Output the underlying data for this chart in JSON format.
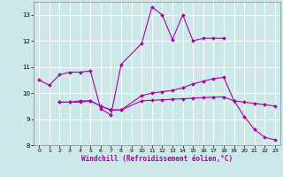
{
  "xlabel": "Windchill (Refroidissement éolien,°C)",
  "xlim": [
    -0.5,
    23.5
  ],
  "ylim": [
    8,
    13.5
  ],
  "yticks": [
    8,
    9,
    10,
    11,
    12,
    13
  ],
  "ytick_labels": [
    "8",
    "9",
    "10",
    "11",
    "12",
    "13"
  ],
  "xticks": [
    0,
    1,
    2,
    3,
    4,
    5,
    6,
    7,
    8,
    9,
    10,
    11,
    12,
    13,
    14,
    15,
    16,
    17,
    18,
    19,
    20,
    21,
    22,
    23
  ],
  "bg_color": "#cce8e8",
  "line_color": "#aa00aa",
  "grid_color": "#ffffff",
  "lines": [
    {
      "x": [
        0,
        1,
        2,
        3,
        4,
        5,
        6,
        7,
        8,
        10,
        11,
        12,
        13,
        14,
        15,
        16,
        17,
        18
      ],
      "y": [
        10.5,
        10.3,
        10.7,
        10.8,
        10.8,
        10.85,
        9.4,
        9.15,
        11.1,
        11.9,
        13.3,
        13.0,
        12.05,
        13.0,
        12.0,
        12.1,
        12.1,
        12.1
      ]
    },
    {
      "x": [
        2,
        3,
        4,
        5,
        6,
        7,
        8,
        10,
        11,
        12,
        13,
        14,
        15,
        16,
        17,
        18,
        19,
        20,
        21,
        22,
        23
      ],
      "y": [
        9.65,
        9.65,
        9.65,
        9.7,
        9.5,
        9.35,
        9.35,
        9.9,
        10.0,
        10.05,
        10.1,
        10.2,
        10.35,
        10.45,
        10.55,
        10.6,
        9.7,
        9.1,
        8.6,
        8.3,
        8.2
      ]
    },
    {
      "x": [
        2,
        3,
        4,
        5,
        6,
        7,
        8,
        10,
        11,
        12,
        13,
        14,
        15,
        16,
        17,
        18,
        19,
        20,
        21,
        22,
        23
      ],
      "y": [
        9.65,
        9.65,
        9.7,
        9.7,
        9.5,
        9.35,
        9.35,
        9.7,
        9.72,
        9.74,
        9.76,
        9.78,
        9.8,
        9.82,
        9.84,
        9.85,
        9.7,
        9.65,
        9.6,
        9.55,
        9.5
      ]
    }
  ]
}
